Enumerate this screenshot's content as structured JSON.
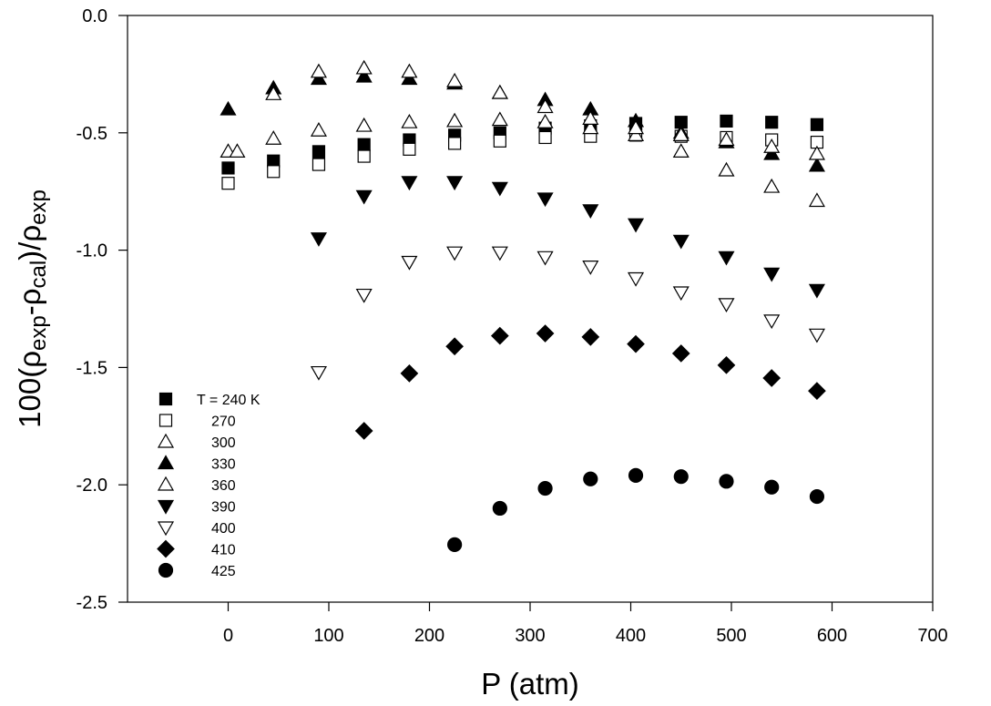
{
  "chart_data": {
    "type": "scatter",
    "title": "",
    "xlabel": "P (atm)",
    "ylabel_parts": [
      "100(",
      "ρ",
      "exp",
      "-",
      "ρ",
      "cal",
      ")/",
      "ρ",
      "exp"
    ],
    "xlim": [
      -100,
      700
    ],
    "ylim": [
      -2.5,
      0.0
    ],
    "xticks": [
      0,
      100,
      200,
      300,
      400,
      500,
      600,
      700
    ],
    "yticks": [
      0.0,
      -0.5,
      -1.0,
      -1.5,
      -2.0,
      -2.5
    ],
    "ytick_labels": [
      "0.0",
      "-0.5",
      "-1.0",
      "-1.5",
      "-2.0",
      "-2.5"
    ],
    "grid": false,
    "legend_position": "lower-left",
    "series": [
      {
        "name": "T = 240 K",
        "marker": "square",
        "fill": "filled",
        "x": [
          0,
          45,
          90,
          135,
          180,
          225,
          270,
          315,
          360,
          405,
          450,
          495,
          540,
          585
        ],
        "y": [
          -0.65,
          -0.62,
          -0.58,
          -0.55,
          -0.53,
          -0.51,
          -0.5,
          -0.48,
          -0.47,
          -0.46,
          -0.455,
          -0.45,
          -0.455,
          -0.465
        ]
      },
      {
        "name": "270",
        "marker": "square",
        "fill": "open",
        "x": [
          0,
          45,
          90,
          135,
          180,
          225,
          270,
          315,
          360,
          405,
          450,
          495,
          540,
          585
        ],
        "y": [
          -0.715,
          -0.665,
          -0.635,
          -0.6,
          -0.57,
          -0.545,
          -0.535,
          -0.52,
          -0.515,
          -0.51,
          -0.515,
          -0.52,
          -0.53,
          -0.54
        ]
      },
      {
        "name": "300",
        "marker": "triangle-up",
        "fill": "open",
        "x": [
          0,
          9,
          45,
          90,
          135,
          180,
          225,
          270,
          315,
          360,
          405,
          450,
          495,
          540,
          585
        ],
        "y": [
          -0.58,
          -0.58,
          -0.525,
          -0.49,
          -0.47,
          -0.455,
          -0.45,
          -0.445,
          -0.455,
          -0.48,
          -0.51,
          -0.58,
          -0.66,
          -0.73,
          -0.79
        ]
      },
      {
        "name": "330",
        "marker": "triangle-up",
        "fill": "filled",
        "x": [
          0,
          45,
          90,
          135,
          180,
          225,
          270,
          315,
          360,
          405,
          450,
          495,
          540,
          585
        ],
        "y": [
          -0.4,
          -0.31,
          -0.27,
          -0.26,
          -0.27,
          -0.29,
          -0.33,
          -0.36,
          -0.4,
          -0.45,
          -0.5,
          -0.54,
          -0.59,
          -0.64
        ]
      },
      {
        "name": "360",
        "marker": "triangle-up",
        "fill": "open",
        "x": [
          45,
          90,
          135,
          180,
          225,
          270,
          315,
          360,
          405,
          450,
          495,
          540,
          585
        ],
        "y": [
          -0.335,
          -0.24,
          -0.225,
          -0.24,
          -0.28,
          -0.33,
          -0.39,
          -0.44,
          -0.48,
          -0.51,
          -0.53,
          -0.56,
          -0.59
        ]
      },
      {
        "name": "390",
        "marker": "triangle-down",
        "fill": "filled",
        "x": [
          90,
          135,
          180,
          225,
          270,
          315,
          360,
          405,
          450,
          495,
          540,
          585
        ],
        "y": [
          -0.95,
          -0.77,
          -0.71,
          -0.71,
          -0.735,
          -0.78,
          -0.83,
          -0.89,
          -0.96,
          -1.03,
          -1.1,
          -1.17
        ]
      },
      {
        "name": "400",
        "marker": "triangle-down",
        "fill": "open",
        "x": [
          90,
          135,
          180,
          225,
          270,
          315,
          360,
          405,
          450,
          495,
          540,
          585
        ],
        "y": [
          -1.52,
          -1.19,
          -1.05,
          -1.01,
          -1.01,
          -1.03,
          -1.07,
          -1.12,
          -1.18,
          -1.23,
          -1.3,
          -1.36
        ]
      },
      {
        "name": "410",
        "marker": "diamond",
        "fill": "filled",
        "x": [
          135,
          180,
          225,
          270,
          315,
          360,
          405,
          450,
          495,
          540,
          585
        ],
        "y": [
          -1.77,
          -1.525,
          -1.41,
          -1.365,
          -1.355,
          -1.37,
          -1.4,
          -1.44,
          -1.49,
          -1.545,
          -1.6
        ]
      },
      {
        "name": "425",
        "marker": "circle",
        "fill": "filled",
        "x": [
          225,
          270,
          315,
          360,
          405,
          450,
          495,
          540,
          585
        ],
        "y": [
          -2.255,
          -2.1,
          -2.015,
          -1.975,
          -1.96,
          -1.965,
          -1.985,
          -2.01,
          -2.05
        ]
      }
    ]
  }
}
